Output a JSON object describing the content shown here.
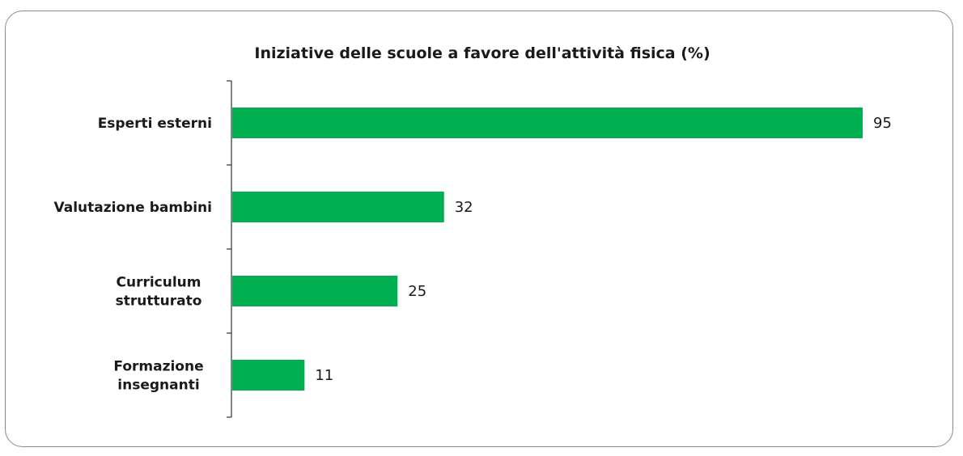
{
  "chart_data": {
    "type": "bar",
    "orientation": "horizontal",
    "title": "Iniziative delle scuole a favore dell'attività fisica (%)",
    "categories": [
      [
        "Esperti esterni"
      ],
      [
        "Valutazione bambini"
      ],
      [
        "Curriculum",
        "strutturato"
      ],
      [
        "Formazione",
        "insegnanti"
      ]
    ],
    "values": [
      95,
      32,
      25,
      11
    ],
    "xlim": [
      0,
      100
    ],
    "bar_color": "#00b050",
    "grid": false,
    "legend": "none",
    "data_labels": [
      "95",
      "32",
      "25",
      "11"
    ]
  }
}
